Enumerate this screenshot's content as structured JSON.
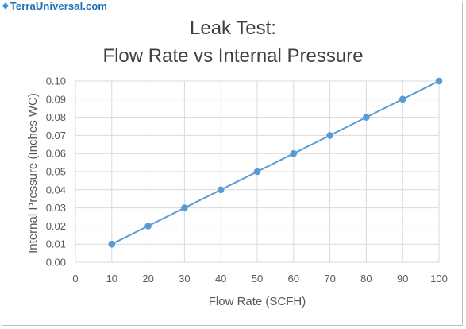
{
  "watermark": {
    "text": "TerraUniversal.com",
    "icon": "terra-logo-icon"
  },
  "chart_data": {
    "type": "line",
    "title_line1": "Leak Test:",
    "title_line2": "Flow Rate vs Internal Pressure",
    "xlabel": "Flow Rate (SCFH)",
    "ylabel": "Internal Pressure (Inches WC)",
    "xlim": [
      0,
      100
    ],
    "ylim": [
      0,
      0.1
    ],
    "x_ticks": [
      "0",
      "10",
      "20",
      "30",
      "40",
      "50",
      "60",
      "70",
      "80",
      "90",
      "100"
    ],
    "y_ticks": [
      "0.00",
      "0.01",
      "0.02",
      "0.03",
      "0.04",
      "0.05",
      "0.06",
      "0.07",
      "0.08",
      "0.09",
      "0.10"
    ],
    "grid": true,
    "legend": "none",
    "series": [
      {
        "x": [
          10,
          20,
          30,
          40,
          50,
          60,
          70,
          80,
          90,
          100
        ],
        "y": [
          0.01,
          0.02,
          0.03,
          0.04,
          0.05,
          0.06,
          0.07,
          0.08,
          0.09,
          0.1
        ],
        "color": "#5b9bd5"
      }
    ],
    "gridline_color": "#d9d9d9"
  }
}
